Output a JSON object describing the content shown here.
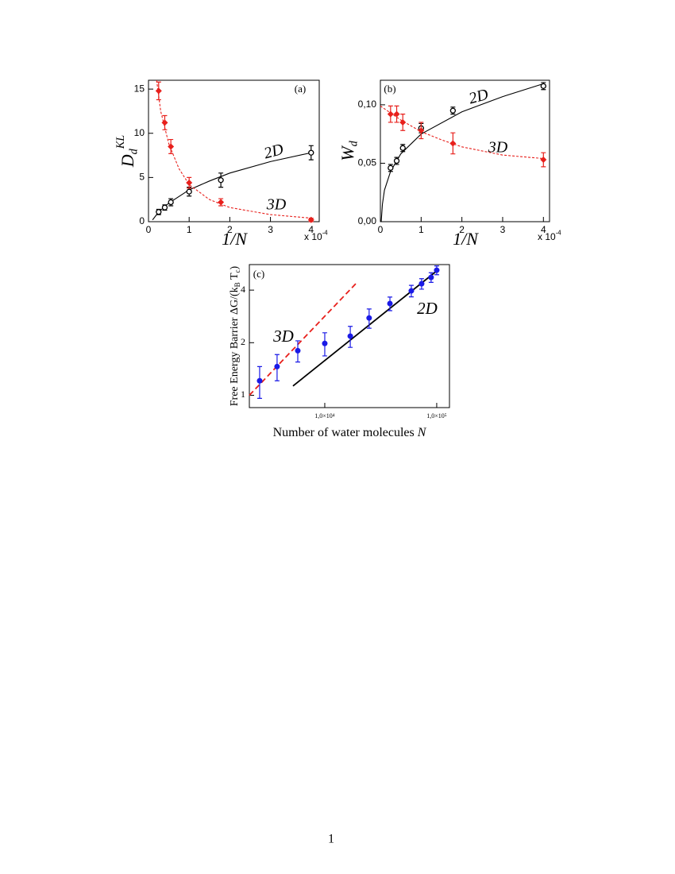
{
  "chart_data": [
    {
      "type": "scatter",
      "title": "(a)",
      "xlabel": [
        {
          "text": "1/N"
        }
      ],
      "ylabel": [
        {
          "text": "D"
        },
        {
          "text": "d",
          "script": "sub"
        },
        {
          "text": "KL",
          "script": "sup"
        }
      ],
      "x_multiplier": [
        {
          "text": "x 10"
        },
        {
          "text": "-4",
          "script": "sup"
        }
      ],
      "annotations": [
        "2D",
        "3D"
      ],
      "xlim": [
        0,
        4.2
      ],
      "ylim": [
        0,
        16
      ],
      "xticks": [
        0,
        1,
        2,
        3,
        4
      ],
      "yticks": [
        0,
        5,
        10,
        15
      ],
      "series": [
        {
          "kind": "line",
          "style": "solid",
          "color": "#000000",
          "x": [
            0.1,
            0.25,
            0.5,
            1,
            1.5,
            2,
            3,
            4
          ],
          "values": [
            0.2,
            1.1,
            2.1,
            3.6,
            4.6,
            5.5,
            6.8,
            7.8
          ]
        },
        {
          "kind": "line",
          "style": "dashed",
          "color": "#e8201c",
          "x": [
            0.2,
            0.3,
            0.5,
            0.75,
            1,
            1.5,
            2,
            3,
            4
          ],
          "values": [
            16,
            12.5,
            8.8,
            6.0,
            4.2,
            2.5,
            1.6,
            0.8,
            0.4
          ]
        },
        {
          "kind": "points",
          "marker": "open-circle",
          "color": "#000000",
          "x": [
            0.25,
            0.4,
            0.55,
            1.0,
            1.78,
            4.0
          ],
          "values": [
            1.1,
            1.6,
            2.2,
            3.4,
            4.7,
            7.8
          ],
          "errors": [
            0.3,
            0.3,
            0.4,
            0.5,
            0.8,
            0.8
          ]
        },
        {
          "kind": "points",
          "marker": "diamond",
          "color": "#e8201c",
          "x": [
            0.25,
            0.4,
            0.55,
            1.0,
            1.78,
            4.0
          ],
          "values": [
            14.8,
            11.2,
            8.5,
            4.4,
            2.2,
            0.2
          ],
          "errors": [
            1.0,
            0.8,
            0.8,
            0.6,
            0.4,
            0.2
          ]
        }
      ]
    },
    {
      "type": "scatter",
      "title": "(b)",
      "xlabel": [
        {
          "text": "1/N"
        }
      ],
      "ylabel": [
        {
          "text": "W"
        },
        {
          "text": "d",
          "script": "sub"
        }
      ],
      "x_multiplier": [
        {
          "text": "x 10"
        },
        {
          "text": "-4",
          "script": "sup"
        }
      ],
      "annotations": [
        "2D",
        "3D"
      ],
      "xlim": [
        0,
        4.15
      ],
      "ylim": [
        0,
        0.121
      ],
      "xticks": [
        0,
        1,
        2,
        3,
        4
      ],
      "yticks": [
        {
          "value": 0,
          "label": "0,00"
        },
        {
          "value": 0.05,
          "label": "0,05"
        },
        {
          "value": 0.1,
          "label": "0,10"
        }
      ],
      "series": [
        {
          "kind": "line",
          "style": "solid",
          "color": "#000000",
          "x": [
            0.02,
            0.05,
            0.1,
            0.25,
            0.5,
            1,
            2,
            3,
            4
          ],
          "values": [
            0,
            0.015,
            0.027,
            0.043,
            0.058,
            0.075,
            0.094,
            0.107,
            0.118
          ]
        },
        {
          "kind": "line",
          "style": "dashed",
          "color": "#e8201c",
          "x": [
            0,
            0.5,
            1,
            1.5,
            2,
            3,
            4
          ],
          "values": [
            0.099,
            0.087,
            0.077,
            0.07,
            0.064,
            0.057,
            0.054
          ]
        },
        {
          "kind": "points",
          "marker": "open-circle",
          "color": "#000000",
          "x": [
            0.25,
            0.4,
            0.55,
            1.0,
            1.78,
            4.0
          ],
          "values": [
            0.046,
            0.052,
            0.063,
            0.08,
            0.095,
            0.116
          ],
          "errors": [
            0.003,
            0.003,
            0.003,
            0.004,
            0.003,
            0.003
          ]
        },
        {
          "kind": "points",
          "marker": "diamond",
          "color": "#e8201c",
          "x": [
            0.25,
            0.4,
            0.55,
            1.0,
            1.78,
            4.0
          ],
          "values": [
            0.092,
            0.092,
            0.085,
            0.078,
            0.067,
            0.053
          ],
          "errors": [
            0.007,
            0.007,
            0.007,
            0.007,
            0.009,
            0.006
          ]
        }
      ]
    },
    {
      "type": "scatter",
      "title": "(c)",
      "xlabel": [
        {
          "text": "Number of water molecules "
        },
        {
          "text": "N",
          "script": "italic"
        }
      ],
      "ylabel": [
        {
          "text": "Free Energy Barrier ΔG/(k"
        },
        {
          "text": "B",
          "script": "sub"
        },
        {
          "text": " T"
        },
        {
          "text": "c",
          "script": "sub"
        },
        {
          "text": ")"
        }
      ],
      "annotations": [
        "3D",
        "2D"
      ],
      "xlog": true,
      "ylog": true,
      "xlim": [
        2120,
        130000
      ],
      "ylim": [
        0.85,
        5.6
      ],
      "xticks": [
        {
          "value": 10000,
          "label": "1,0×10⁴"
        },
        {
          "value": 100000,
          "label": "1,0×10⁵"
        }
      ],
      "yticks": [
        1,
        2,
        4
      ],
      "series": [
        {
          "kind": "line",
          "style": "dashed",
          "color": "#e8201c",
          "x": [
            2120,
            19500
          ],
          "values": [
            1.0,
            4.44
          ]
        },
        {
          "kind": "line",
          "style": "solid",
          "color": "#000000",
          "x": [
            5200,
            100000
          ],
          "values": [
            1.13,
            5.15
          ]
        },
        {
          "kind": "points",
          "marker": "circle",
          "color": "#1a1ae6",
          "x": [
            2620,
            3750,
            5740,
            10000,
            16900,
            24900,
            38200,
            59300,
            73300,
            89100,
            100000
          ],
          "values": [
            1.21,
            1.46,
            1.8,
            1.98,
            2.18,
            2.77,
            3.35,
            3.96,
            4.35,
            4.73,
            5.2
          ],
          "errors": [
            0.25,
            0.25,
            0.25,
            0.3,
            0.3,
            0.35,
            0.3,
            0.3,
            0.3,
            0.3,
            0.3
          ]
        }
      ]
    }
  ],
  "page_number": "1"
}
